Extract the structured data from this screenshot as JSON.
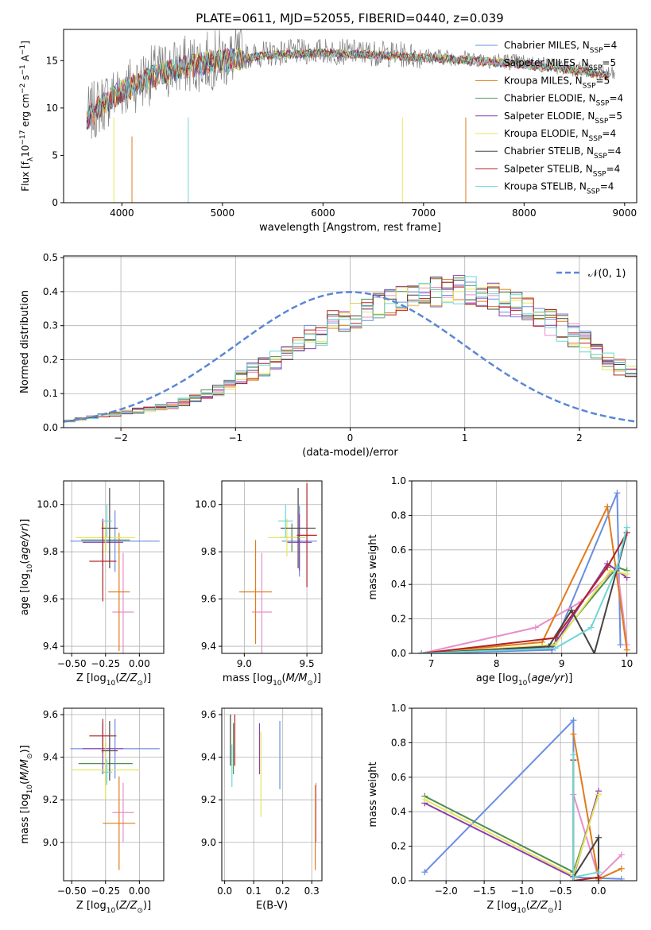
{
  "figure": {
    "title": "PLATE=0611, MJD=52055, FIBERID=0440, z=0.039"
  },
  "colors": [
    "#6a8ee0",
    "#e88fc9",
    "#e07b1a",
    "#4f8f4f",
    "#8b3fb0",
    "#e6e65c",
    "#444444",
    "#b22222",
    "#6fd6d6"
  ],
  "chart_data": [
    {
      "id": "spectrum",
      "type": "line",
      "xlabel": "wavelength [Angstrom, rest frame]",
      "ylabel": "Flux [f_λ10^-17 erg cm^-2 s^-1 A^-1]",
      "xlim": [
        3420,
        9120
      ],
      "ylim": [
        0,
        18.3
      ],
      "xticks": [
        4000,
        5000,
        6000,
        7000,
        8000,
        9000
      ],
      "yticks": [
        0,
        5,
        10,
        15
      ],
      "legend": "top-right",
      "series": [
        {
          "name": "Chabrier MILES, N_SSP=4"
        },
        {
          "name": "Salpeter MILES, N_SSP=5"
        },
        {
          "name": "Kroupa MILES, N_SSP=5"
        },
        {
          "name": "Chabrier ELODIE, N_SSP=4"
        },
        {
          "name": "Salpeter ELODIE, N_SSP=5"
        },
        {
          "name": "Kroupa ELODIE, N_SSP=4"
        },
        {
          "name": "Chabrier STELIB, N_SSP=4"
        },
        {
          "name": "Salpeter STELIB, N_SSP=4"
        },
        {
          "name": "Kroupa STELIB, N_SSP=4"
        }
      ],
      "data_continuum": [
        [
          3650,
          9.0
        ],
        [
          3800,
          10.5
        ],
        [
          4000,
          12.0
        ],
        [
          4300,
          13.5
        ],
        [
          4600,
          14.5
        ],
        [
          5000,
          15.2
        ],
        [
          5500,
          15.8
        ],
        [
          6000,
          16.0
        ],
        [
          6500,
          15.8
        ],
        [
          7000,
          15.5
        ],
        [
          7500,
          15.2
        ],
        [
          8000,
          14.8
        ],
        [
          8500,
          14.2
        ],
        [
          8900,
          13.5
        ]
      ]
    },
    {
      "id": "residuals",
      "type": "histogram",
      "xlabel": "(data-model)/error",
      "ylabel": "Normed distribution",
      "xlim": [
        -2.5,
        2.5
      ],
      "ylim": [
        0,
        0.505
      ],
      "xticks": [
        -2,
        -1,
        0,
        1,
        2
      ],
      "yticks": [
        0.0,
        0.1,
        0.2,
        0.3,
        0.4,
        0.5
      ],
      "reference": "N(0,1)",
      "bin_edges_start": -2.5,
      "bin_width": 0.1,
      "base_heights": [
        0.02,
        0.025,
        0.03,
        0.035,
        0.04,
        0.045,
        0.05,
        0.055,
        0.06,
        0.065,
        0.075,
        0.085,
        0.1,
        0.11,
        0.13,
        0.15,
        0.165,
        0.18,
        0.195,
        0.21,
        0.24,
        0.26,
        0.28,
        0.3,
        0.32,
        0.33,
        0.35,
        0.36,
        0.37,
        0.38,
        0.39,
        0.395,
        0.4,
        0.41,
        0.405,
        0.4,
        0.395,
        0.385,
        0.37,
        0.36,
        0.35,
        0.33,
        0.31,
        0.29,
        0.27,
        0.25,
        0.22,
        0.2,
        0.18,
        0.165,
        0.145,
        0.13,
        0.11,
        0.1,
        0.085,
        0.075,
        0.065,
        0.055,
        0.045,
        0.04
      ]
    },
    {
      "id": "age_vs_Z",
      "type": "errorbar",
      "xlabel": "Z [log10(Z/Z_sun)]",
      "ylabel": "age [log10(age/yr)]",
      "xlim": [
        -0.56,
        0.18
      ],
      "ylim": [
        9.37,
        10.1
      ],
      "xticks": [
        -0.5,
        -0.25,
        0.0
      ],
      "yticks": [
        9.4,
        9.6,
        9.8,
        10.0
      ],
      "points": [
        [
          -0.18,
          9.845,
          0.33,
          0.13
        ],
        [
          -0.12,
          9.545,
          0.08,
          0.25
        ],
        [
          -0.15,
          9.63,
          0.08,
          0.25
        ],
        [
          -0.25,
          9.85,
          0.18,
          0.05
        ],
        [
          -0.27,
          9.84,
          0.15,
          0.1
        ],
        [
          -0.25,
          9.86,
          0.22,
          0.07
        ],
        [
          -0.22,
          9.9,
          0.06,
          0.17
        ],
        [
          -0.27,
          9.76,
          0.1,
          0.17
        ],
        [
          -0.24,
          9.93,
          0.04,
          0.07
        ]
      ]
    },
    {
      "id": "age_vs_mass",
      "type": "errorbar",
      "xlabel": "mass [log10(M/M_sun)]",
      "ylabel": "",
      "xlim": [
        8.82,
        9.62
      ],
      "ylim": [
        9.37,
        10.1
      ],
      "xticks": [
        9.0,
        9.5
      ],
      "yticks": [
        9.4,
        9.6,
        9.8,
        10.0
      ],
      "points": [
        [
          9.44,
          9.845,
          0.14,
          0.15
        ],
        [
          9.14,
          9.545,
          0.08,
          0.25
        ],
        [
          9.09,
          9.63,
          0.13,
          0.22
        ],
        [
          9.38,
          9.86,
          0.1,
          0.06
        ],
        [
          9.44,
          9.84,
          0.1,
          0.12
        ],
        [
          9.34,
          9.86,
          0.15,
          0.08
        ],
        [
          9.43,
          9.9,
          0.14,
          0.17
        ],
        [
          9.5,
          9.87,
          0.08,
          0.22
        ],
        [
          9.33,
          9.93,
          0.06,
          0.07
        ]
      ]
    },
    {
      "id": "massweight_vs_age",
      "type": "line",
      "xlabel": "age [log10(age/yr)]",
      "ylabel": "mass weight",
      "xlim": [
        6.7,
        10.15
      ],
      "ylim": [
        0,
        1.0
      ],
      "xticks": [
        7,
        8,
        9,
        10
      ],
      "yticks": [
        0.0,
        0.2,
        0.4,
        0.6,
        0.8,
        1.0
      ],
      "series": [
        {
          "points": [
            [
              6.85,
              0.0
            ],
            [
              8.85,
              0.02
            ],
            [
              9.85,
              0.93
            ],
            [
              9.9,
              0.05
            ]
          ]
        },
        {
          "points": [
            [
              6.85,
              0.0
            ],
            [
              8.6,
              0.15
            ],
            [
              9.3,
              0.3
            ],
            [
              9.85,
              0.5
            ],
            [
              10.0,
              0.05
            ]
          ]
        },
        {
          "points": [
            [
              6.85,
              0.0
            ],
            [
              8.7,
              0.065
            ],
            [
              9.7,
              0.85
            ],
            [
              10.0,
              0.02
            ]
          ]
        },
        {
          "points": [
            [
              6.85,
              0.0
            ],
            [
              8.85,
              0.04
            ],
            [
              9.85,
              0.5
            ],
            [
              10.0,
              0.48
            ]
          ]
        },
        {
          "points": [
            [
              6.85,
              0.0
            ],
            [
              8.85,
              0.03
            ],
            [
              9.7,
              0.52
            ],
            [
              10.0,
              0.44
            ]
          ]
        },
        {
          "points": [
            [
              6.85,
              0.0
            ],
            [
              8.9,
              0.05
            ],
            [
              9.75,
              0.48
            ],
            [
              10.0,
              0.46
            ]
          ]
        },
        {
          "points": [
            [
              6.85,
              0.0
            ],
            [
              8.8,
              0.04
            ],
            [
              9.15,
              0.25
            ],
            [
              9.5,
              0.0
            ],
            [
              10.0,
              0.7
            ]
          ]
        },
        {
          "points": [
            [
              6.85,
              0.0
            ],
            [
              8.9,
              0.09
            ],
            [
              9.7,
              0.5
            ],
            [
              10.0,
              0.7
            ]
          ]
        },
        {
          "points": [
            [
              6.85,
              0.0
            ],
            [
              8.9,
              0.03
            ],
            [
              9.45,
              0.15
            ],
            [
              9.85,
              0.5
            ],
            [
              10.0,
              0.73
            ]
          ]
        }
      ]
    },
    {
      "id": "mass_vs_Z",
      "type": "errorbar",
      "xlabel": "Z [log10(Z/Z_sun)]",
      "ylabel": "mass [log10(M/M_sun)]",
      "xlim": [
        -0.56,
        0.18
      ],
      "ylim": [
        8.82,
        9.63
      ],
      "xticks": [
        -0.5,
        -0.25,
        0.0
      ],
      "yticks": [
        9.0,
        9.2,
        9.4,
        9.6
      ],
      "points": [
        [
          -0.18,
          9.44,
          0.33,
          0.14
        ],
        [
          -0.12,
          9.14,
          0.08,
          0.14
        ],
        [
          -0.15,
          9.09,
          0.12,
          0.22
        ],
        [
          -0.25,
          9.37,
          0.2,
          0.1
        ],
        [
          -0.27,
          9.44,
          0.15,
          0.12
        ],
        [
          -0.25,
          9.34,
          0.25,
          0.14
        ],
        [
          -0.22,
          9.43,
          0.06,
          0.14
        ],
        [
          -0.27,
          9.5,
          0.1,
          0.08
        ],
        [
          -0.24,
          9.33,
          0.04,
          0.06
        ]
      ]
    },
    {
      "id": "mass_vs_ebv",
      "type": "errorbar",
      "xlabel": "E(B-V)",
      "ylabel": "",
      "xlim": [
        -0.01,
        0.335
      ],
      "ylim": [
        8.82,
        9.63
      ],
      "xticks": [
        0.0,
        0.1,
        0.2,
        0.3
      ],
      "yticks": [
        9.0,
        9.2,
        9.4,
        9.6
      ],
      "points": [
        [
          0.19,
          9.41,
          0,
          0.16
        ],
        [
          0.315,
          9.14,
          0,
          0.14
        ],
        [
          0.312,
          9.07,
          0,
          0.2
        ],
        [
          0.03,
          9.44,
          0,
          0.12
        ],
        [
          0.12,
          9.44,
          0,
          0.12
        ],
        [
          0.125,
          9.32,
          0,
          0.2
        ],
        [
          0.02,
          9.48,
          0,
          0.12
        ],
        [
          0.035,
          9.48,
          0,
          0.12
        ],
        [
          0.025,
          9.36,
          0,
          0.1
        ]
      ]
    },
    {
      "id": "massweight_vs_Z",
      "type": "line",
      "xlabel": "Z [log10(Z/Z_sun)]",
      "ylabel": "mass weight",
      "xlim": [
        -2.45,
        0.5
      ],
      "ylim": [
        0,
        1.0
      ],
      "xticks": [
        -2.0,
        -1.5,
        -1.0,
        -0.5,
        0.0
      ],
      "yticks": [
        0.0,
        0.2,
        0.4,
        0.6,
        0.8,
        1.0
      ],
      "series": [
        {
          "points": [
            [
              -2.28,
              0.05
            ],
            [
              -0.33,
              0.93
            ],
            [
              -0.33,
              0.02
            ],
            [
              0.3,
              0.01
            ]
          ]
        },
        {
          "points": [
            [
              -0.33,
              0.5
            ],
            [
              0.0,
              0.02
            ],
            [
              0.3,
              0.15
            ]
          ]
        },
        {
          "points": [
            [
              -0.33,
              0.85
            ],
            [
              0.0,
              0.01
            ],
            [
              0.3,
              0.07
            ]
          ]
        },
        {
          "points": [
            [
              -2.28,
              0.49
            ],
            [
              -0.33,
              0.05
            ],
            [
              0.0,
              0.5
            ]
          ]
        },
        {
          "points": [
            [
              -2.28,
              0.45
            ],
            [
              -0.33,
              0.02
            ],
            [
              0.0,
              0.52
            ]
          ]
        },
        {
          "points": [
            [
              -2.28,
              0.47
            ],
            [
              -0.33,
              0.03
            ],
            [
              0.0,
              0.5
            ]
          ]
        },
        {
          "points": [
            [
              -0.33,
              0.7
            ],
            [
              -0.33,
              0.02
            ],
            [
              0.0,
              0.25
            ],
            [
              0.0,
              0.0
            ]
          ]
        },
        {
          "points": [
            [
              -0.33,
              0.7
            ],
            [
              -0.33,
              0.0
            ],
            [
              0.0,
              0.02
            ]
          ]
        },
        {
          "points": [
            [
              -0.33,
              0.73
            ],
            [
              -0.33,
              0.02
            ],
            [
              0.0,
              0.05
            ]
          ]
        }
      ]
    }
  ]
}
